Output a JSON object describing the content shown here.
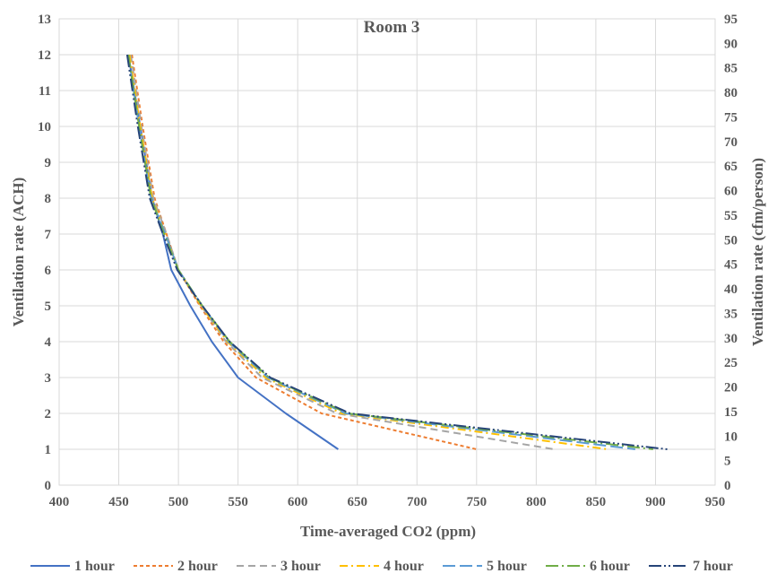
{
  "chart_data": {
    "type": "line",
    "title": "Room 3",
    "xlabel": "Time-averaged CO2 (ppm)",
    "ylabel": "Ventilation rate (ACH)",
    "y2label": "Ventilation rate (cfm/person)",
    "xlim": [
      400,
      950
    ],
    "ylim": [
      0,
      13
    ],
    "y2lim": [
      0,
      95
    ],
    "x_ticks": [
      "400",
      "450",
      "500",
      "550",
      "600",
      "650",
      "700",
      "750",
      "800",
      "850",
      "900",
      "950"
    ],
    "y_ticks": [
      "0",
      "1",
      "2",
      "3",
      "4",
      "5",
      "6",
      "7",
      "8",
      "9",
      "10",
      "11",
      "12",
      "13"
    ],
    "y2_ticks": [
      "0",
      "5",
      "10",
      "15",
      "20",
      "25",
      "30",
      "35",
      "40",
      "45",
      "50",
      "55",
      "60",
      "65",
      "70",
      "75",
      "80",
      "85",
      "90",
      "95"
    ],
    "grid": true,
    "legend_position": "bottom",
    "series": [
      {
        "name": "1 hour",
        "color": "#4472C4",
        "dash": "solid",
        "points": [
          [
            458,
            12
          ],
          [
            468,
            10
          ],
          [
            478,
            8
          ],
          [
            487,
            7
          ],
          [
            494,
            6
          ],
          [
            510,
            5
          ],
          [
            528,
            4
          ],
          [
            550,
            3
          ],
          [
            590,
            2
          ],
          [
            634,
            1
          ]
        ]
      },
      {
        "name": "2 hour",
        "color": "#ED7D31",
        "dash": "short-dash",
        "points": [
          [
            461,
            12
          ],
          [
            470,
            10
          ],
          [
            480,
            8
          ],
          [
            490,
            7
          ],
          [
            500,
            6
          ],
          [
            518,
            5
          ],
          [
            538,
            4
          ],
          [
            565,
            3
          ],
          [
            620,
            2
          ],
          [
            750,
            1
          ]
        ]
      },
      {
        "name": "3 hour",
        "color": "#A5A5A5",
        "dash": "dash",
        "points": [
          [
            460,
            12
          ],
          [
            469,
            10
          ],
          [
            479,
            8
          ],
          [
            490,
            7
          ],
          [
            500,
            6
          ],
          [
            519,
            5
          ],
          [
            540,
            4
          ],
          [
            570,
            3
          ],
          [
            633,
            2
          ],
          [
            815,
            1
          ]
        ]
      },
      {
        "name": "4 hour",
        "color": "#FFC000",
        "dash": "dash-dot",
        "points": [
          [
            459,
            12
          ],
          [
            468,
            10
          ],
          [
            478,
            8
          ],
          [
            489,
            7
          ],
          [
            500,
            6
          ],
          [
            519,
            5
          ],
          [
            541,
            4
          ],
          [
            573,
            3
          ],
          [
            637,
            2
          ],
          [
            860,
            1
          ]
        ]
      },
      {
        "name": "5 hour",
        "color": "#5B9BD5",
        "dash": "long-dash",
        "points": [
          [
            458,
            12
          ],
          [
            467,
            10
          ],
          [
            477,
            8
          ],
          [
            489,
            7
          ],
          [
            500,
            6
          ],
          [
            520,
            5
          ],
          [
            542,
            4
          ],
          [
            575,
            3
          ],
          [
            640,
            2
          ],
          [
            883,
            1
          ]
        ]
      },
      {
        "name": "6 hour",
        "color": "#70AD47",
        "dash": "long-dash-dot",
        "points": [
          [
            458,
            12
          ],
          [
            467,
            10
          ],
          [
            477,
            8
          ],
          [
            488,
            7
          ],
          [
            500,
            6
          ],
          [
            520,
            5
          ],
          [
            543,
            4
          ],
          [
            576,
            3
          ],
          [
            642,
            2
          ],
          [
            898,
            1
          ]
        ]
      },
      {
        "name": "7 hour",
        "color": "#264478",
        "dash": "long-dash-dot-dot",
        "points": [
          [
            457,
            12
          ],
          [
            466,
            10
          ],
          [
            476,
            8
          ],
          [
            487,
            7
          ],
          [
            499,
            6
          ],
          [
            520,
            5
          ],
          [
            543,
            4
          ],
          [
            577,
            3
          ],
          [
            644,
            2
          ],
          [
            910,
            1
          ]
        ]
      }
    ]
  }
}
